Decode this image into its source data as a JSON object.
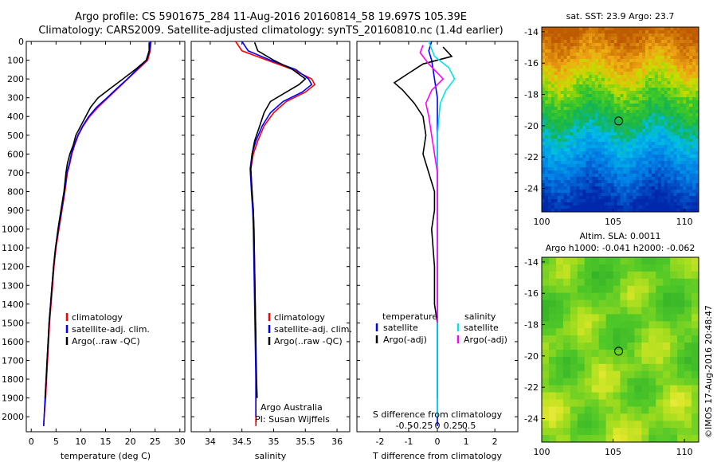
{
  "header": {
    "line1": "Argo profile: CS 5901675_284 11-Aug-2016 20160814_58 19.697S 105.39E",
    "line2": "Climatology: CARS2009. Satellite-adjusted climatology: synTS_20160810.nc (1.4d earlier)"
  },
  "colors": {
    "climatology": "#ff0000",
    "satellite": "#0000ff",
    "argo": "#000000",
    "sat_salinity": "#00e5ee",
    "argo_salinity": "#ff00ff"
  },
  "chart_data": [
    {
      "type": "line",
      "name": "temperature-profile",
      "xlabel": "temperature (deg C)",
      "ylabel": "",
      "xlim": [
        -1,
        31
      ],
      "ylim": [
        2080,
        0
      ],
      "xticks": [
        0,
        5,
        10,
        15,
        20,
        25,
        30
      ],
      "yticks": [
        0,
        100,
        200,
        300,
        400,
        500,
        600,
        700,
        800,
        900,
        1000,
        1100,
        1200,
        1300,
        1400,
        1500,
        1600,
        1700,
        1800,
        1900,
        2000
      ],
      "legend": [
        "climatology",
        "satellite-adj. clim.",
        "Argo(..raw -QC)"
      ],
      "series": [
        {
          "name": "climatology",
          "color": "red",
          "points": [
            [
              24.2,
              0
            ],
            [
              24.0,
              50
            ],
            [
              23.5,
              100
            ],
            [
              21.5,
              150
            ],
            [
              19.5,
              200
            ],
            [
              17.5,
              250
            ],
            [
              15.5,
              300
            ],
            [
              13.5,
              350
            ],
            [
              11.8,
              400
            ],
            [
              10.5,
              450
            ],
            [
              9.5,
              500
            ],
            [
              8.8,
              550
            ],
            [
              8.2,
              600
            ],
            [
              7.8,
              650
            ],
            [
              7.3,
              700
            ],
            [
              6.8,
              800
            ],
            [
              6.2,
              900
            ],
            [
              5.6,
              1000
            ],
            [
              5.0,
              1100
            ],
            [
              4.6,
              1200
            ],
            [
              4.3,
              1300
            ],
            [
              4.0,
              1400
            ],
            [
              3.7,
              1500
            ],
            [
              3.5,
              1600
            ],
            [
              3.3,
              1700
            ],
            [
              3.1,
              1800
            ],
            [
              2.9,
              1900
            ],
            [
              2.6,
              2000
            ],
            [
              2.5,
              2050
            ]
          ]
        },
        {
          "name": "satellite-adj. clim.",
          "color": "blue",
          "points": [
            [
              24.0,
              0
            ],
            [
              23.9,
              50
            ],
            [
              23.3,
              100
            ],
            [
              21.3,
              150
            ],
            [
              19.4,
              200
            ],
            [
              17.3,
              250
            ],
            [
              15.3,
              300
            ],
            [
              13.2,
              350
            ],
            [
              11.6,
              400
            ],
            [
              10.4,
              450
            ],
            [
              9.4,
              500
            ],
            [
              8.7,
              550
            ],
            [
              8.1,
              600
            ],
            [
              7.7,
              650
            ],
            [
              7.2,
              700
            ],
            [
              6.7,
              800
            ],
            [
              6.1,
              900
            ],
            [
              5.5,
              1000
            ],
            [
              4.9,
              1100
            ],
            [
              4.5,
              1200
            ],
            [
              4.2,
              1300
            ],
            [
              3.9,
              1400
            ],
            [
              3.6,
              1500
            ],
            [
              3.4,
              1600
            ],
            [
              3.2,
              1700
            ],
            [
              3.0,
              1800
            ],
            [
              2.8,
              1900
            ],
            [
              2.6,
              2000
            ],
            [
              2.5,
              2050
            ]
          ]
        },
        {
          "name": "Argo(..raw -QC)",
          "color": "black",
          "points": [
            [
              23.8,
              5
            ],
            [
              23.8,
              50
            ],
            [
              23.2,
              100
            ],
            [
              21.0,
              150
            ],
            [
              18.5,
              200
            ],
            [
              16.0,
              250
            ],
            [
              13.5,
              300
            ],
            [
              12.0,
              350
            ],
            [
              11.0,
              400
            ],
            [
              10.0,
              450
            ],
            [
              9.0,
              500
            ],
            [
              8.5,
              550
            ],
            [
              7.8,
              600
            ],
            [
              7.3,
              650
            ],
            [
              7.0,
              700
            ],
            [
              6.6,
              800
            ],
            [
              6.0,
              900
            ],
            [
              5.4,
              1000
            ],
            [
              4.9,
              1100
            ],
            [
              4.5,
              1200
            ],
            [
              4.2,
              1300
            ],
            [
              3.9,
              1400
            ],
            [
              3.6,
              1500
            ],
            [
              3.4,
              1600
            ],
            [
              3.2,
              1700
            ],
            [
              3.0,
              1800
            ],
            [
              2.8,
              1900
            ]
          ]
        }
      ]
    },
    {
      "type": "line",
      "name": "salinity-profile",
      "xlabel": "salinity",
      "xlim": [
        33.7,
        36.2
      ],
      "ylim": [
        2080,
        0
      ],
      "xticks": [
        34,
        34.5,
        35,
        35.5,
        36
      ],
      "legend": [
        "climatology",
        "satellite-adj. clim.",
        "Argo(..raw -QC)"
      ],
      "annotations": [
        "Argo Australia",
        "PI: Susan Wijffels"
      ],
      "series": [
        {
          "name": "climatology",
          "color": "red",
          "points": [
            [
              34.4,
              0
            ],
            [
              34.5,
              50
            ],
            [
              34.9,
              100
            ],
            [
              35.3,
              150
            ],
            [
              35.6,
              200
            ],
            [
              35.65,
              230
            ],
            [
              35.5,
              270
            ],
            [
              35.2,
              320
            ],
            [
              35.0,
              380
            ],
            [
              34.85,
              450
            ],
            [
              34.75,
              530
            ],
            [
              34.68,
              600
            ],
            [
              34.64,
              680
            ],
            [
              34.66,
              800
            ],
            [
              34.68,
              900
            ],
            [
              34.69,
              1000
            ],
            [
              34.7,
              1200
            ],
            [
              34.71,
              1400
            ],
            [
              34.72,
              1600
            ],
            [
              34.72,
              1800
            ],
            [
              34.72,
              2000
            ],
            [
              34.72,
              2050
            ]
          ]
        },
        {
          "name": "satellite-adj. clim.",
          "color": "blue",
          "points": [
            [
              34.5,
              0
            ],
            [
              34.6,
              50
            ],
            [
              34.95,
              100
            ],
            [
              35.35,
              150
            ],
            [
              35.55,
              200
            ],
            [
              35.6,
              230
            ],
            [
              35.45,
              270
            ],
            [
              35.15,
              320
            ],
            [
              34.95,
              380
            ],
            [
              34.82,
              450
            ],
            [
              34.72,
              530
            ],
            [
              34.66,
              600
            ],
            [
              34.63,
              680
            ],
            [
              34.65,
              800
            ],
            [
              34.67,
              900
            ],
            [
              34.68,
              1000
            ],
            [
              34.69,
              1200
            ],
            [
              34.7,
              1400
            ],
            [
              34.71,
              1600
            ],
            [
              34.72,
              1800
            ],
            [
              34.72,
              2000
            ]
          ]
        },
        {
          "name": "Argo(..raw -QC)",
          "color": "black",
          "points": [
            [
              34.7,
              5
            ],
            [
              34.75,
              50
            ],
            [
              35.0,
              100
            ],
            [
              35.3,
              150
            ],
            [
              35.5,
              200
            ],
            [
              35.4,
              230
            ],
            [
              35.2,
              270
            ],
            [
              34.95,
              320
            ],
            [
              34.85,
              380
            ],
            [
              34.78,
              450
            ],
            [
              34.7,
              530
            ],
            [
              34.66,
              600
            ],
            [
              34.64,
              680
            ],
            [
              34.66,
              800
            ],
            [
              34.68,
              900
            ],
            [
              34.69,
              1000
            ],
            [
              34.7,
              1200
            ],
            [
              34.71,
              1400
            ],
            [
              34.72,
              1600
            ],
            [
              34.73,
              1800
            ],
            [
              34.74,
              1900
            ]
          ]
        }
      ]
    },
    {
      "type": "line",
      "name": "difference-profile",
      "xlabel": "T difference from climatology",
      "xlabel_top": "S difference from climatology",
      "xlim": [
        -2.8,
        2.8
      ],
      "ylim": [
        2080,
        0
      ],
      "xticks": [
        -2,
        -1,
        0,
        1,
        2
      ],
      "s_tick_labels": [
        "-0.5",
        "-0.25",
        "0",
        "0.25",
        "0.5"
      ],
      "legend_temperature": [
        "temperature",
        "satellite",
        "Argo(-adj)"
      ],
      "legend_salinity": [
        "salinity",
        "satellite",
        "Argo(-adj)"
      ],
      "series": [
        {
          "name": "satellite",
          "color": "blue",
          "points": [
            [
              -0.2,
              0
            ],
            [
              -0.3,
              50
            ],
            [
              -0.2,
              100
            ],
            [
              -0.1,
              200
            ],
            [
              0,
              300
            ],
            [
              0,
              500
            ],
            [
              0,
              800
            ],
            [
              0,
              1200
            ],
            [
              0,
              1600
            ],
            [
              0,
              2000
            ],
            [
              0,
              2050
            ]
          ]
        },
        {
          "name": "Argo(-adj)",
          "color": "black",
          "points": [
            [
              0.2,
              30
            ],
            [
              0.5,
              80
            ],
            [
              -0.5,
              120
            ],
            [
              -1.0,
              170
            ],
            [
              -1.5,
              220
            ],
            [
              -1.2,
              260
            ],
            [
              -0.8,
              330
            ],
            [
              -0.5,
              400
            ],
            [
              -0.4,
              500
            ],
            [
              -0.5,
              600
            ],
            [
              -0.3,
              700
            ],
            [
              -0.1,
              800
            ],
            [
              -0.1,
              900
            ],
            [
              -0.2,
              1000
            ],
            [
              -0.1,
              1200
            ],
            [
              -0.1,
              1400
            ],
            [
              0,
              1500
            ],
            [
              0,
              1600
            ],
            [
              0,
              1800
            ],
            [
              0,
              1900
            ]
          ]
        },
        {
          "name": "salinity satellite",
          "color": "cyan",
          "points": [
            [
              -0.3,
              0
            ],
            [
              -0.1,
              80
            ],
            [
              0.4,
              140
            ],
            [
              0.6,
              200
            ],
            [
              0.3,
              260
            ],
            [
              0.1,
              330
            ],
            [
              0,
              500
            ],
            [
              0,
              800
            ],
            [
              0,
              1200
            ],
            [
              0,
              1600
            ],
            [
              0,
              2000
            ]
          ]
        },
        {
          "name": "salinity Argo(-adj)",
          "color": "magenta",
          "points": [
            [
              -0.5,
              20
            ],
            [
              -0.6,
              60
            ],
            [
              -0.3,
              120
            ],
            [
              0.2,
              200
            ],
            [
              -0.2,
              260
            ],
            [
              -0.4,
              330
            ],
            [
              -0.3,
              400
            ],
            [
              -0.2,
              500
            ],
            [
              -0.1,
              600
            ],
            [
              0,
              700
            ],
            [
              0,
              900
            ],
            [
              0,
              1200
            ],
            [
              0,
              1500
            ]
          ]
        }
      ]
    },
    {
      "type": "heatmap",
      "name": "sst-map",
      "title": "sat. SST: 23.9 Argo: 23.7",
      "xlim": [
        100,
        111
      ],
      "ylim": [
        -25.5,
        -13.7
      ],
      "xticks": [
        100,
        105,
        110
      ],
      "yticks": [
        -14,
        -16,
        -18,
        -20,
        -22,
        -24
      ],
      "marker": [
        105.39,
        -19.697
      ]
    },
    {
      "type": "heatmap",
      "name": "sla-map",
      "title": "Altim. SLA: 0.0011",
      "subtitle": "Argo h1000: -0.041 h2000: -0.062",
      "xlim": [
        100,
        111
      ],
      "ylim": [
        -25.5,
        -13.7
      ],
      "xticks": [
        100,
        105,
        110
      ],
      "yticks": [
        -14,
        -16,
        -18,
        -20,
        -22,
        -24
      ],
      "marker": [
        105.39,
        -19.697
      ]
    }
  ],
  "footer": {
    "credit": "©IMOS 17-Aug-2016 20:48:47"
  }
}
